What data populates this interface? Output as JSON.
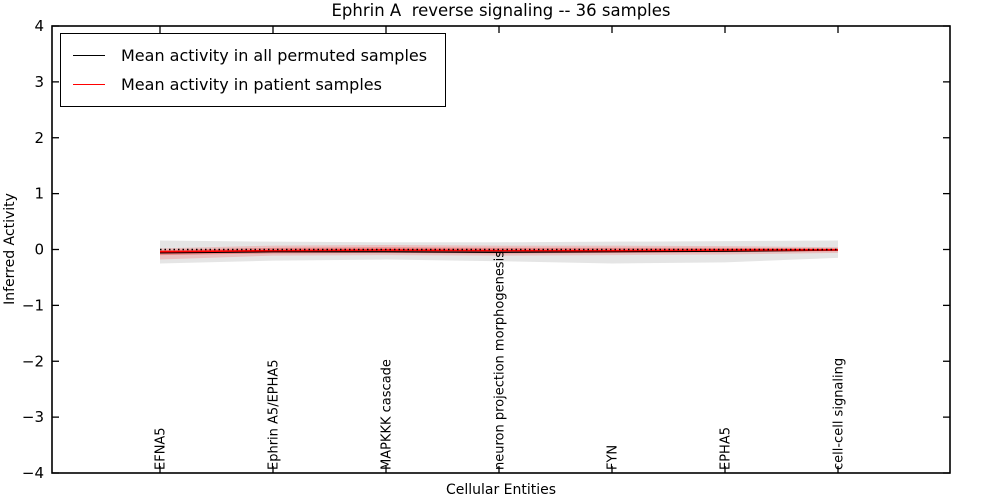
{
  "title": "Ephrin A  reverse signaling -- 36 samples",
  "axes": {
    "xlabel": "Cellular Entities",
    "ylabel": "Inferred Activity"
  },
  "legend": {
    "items": [
      {
        "label": "Mean activity in all permuted samples",
        "color": "#000000"
      },
      {
        "label": "Mean activity in patient samples",
        "color": "#ff0000"
      }
    ]
  },
  "chart_data": {
    "type": "line",
    "title": "Ephrin A  reverse signaling -- 36 samples",
    "xlabel": "Cellular Entities",
    "ylabel": "Inferred Activity",
    "ylim": [
      -4,
      4
    ],
    "yticks": [
      4,
      3,
      2,
      1,
      0,
      -1,
      -2,
      -3,
      -4
    ],
    "ytick_labels": [
      "4",
      "3",
      "2",
      "1",
      "0",
      "−1",
      "−2",
      "−3",
      "−4"
    ],
    "grid": false,
    "legend_position": "upper left",
    "categories": [
      "EFNA5",
      "Ephrin A5/EPHA5",
      "MAPKKK cascade",
      "neuron projection morphogenesis",
      "FYN",
      "EPHA5",
      "cell-cell signaling"
    ],
    "series": [
      {
        "name": "Mean activity in all permuted samples",
        "color": "#000000",
        "style": "solid",
        "values": [
          -0.06,
          -0.04,
          -0.04,
          -0.05,
          -0.04,
          -0.03,
          -0.01
        ]
      },
      {
        "name": "Mean activity in patient samples",
        "color": "#ff0000",
        "style": "solid",
        "values": [
          -0.04,
          -0.02,
          -0.01,
          -0.02,
          -0.02,
          -0.01,
          -0.005
        ]
      },
      {
        "name": "zero reference",
        "color": "#000000",
        "style": "dotted",
        "values": [
          0,
          0,
          0,
          0,
          0,
          0,
          0
        ]
      }
    ],
    "bands": [
      {
        "name": "permuted samples range",
        "color": "rgba(0,0,0,0.10)",
        "upper": [
          0.16,
          0.14,
          0.13,
          0.13,
          0.14,
          0.15,
          0.16
        ],
        "lower": [
          -0.25,
          -0.2,
          -0.18,
          -0.21,
          -0.25,
          -0.23,
          -0.15
        ]
      },
      {
        "name": "patient samples range outer",
        "color": "rgba(255,0,0,0.16)",
        "upper": [
          0.02,
          0.07,
          0.08,
          0.07,
          0.07,
          0.06,
          0.04
        ],
        "lower": [
          -0.18,
          -0.11,
          -0.1,
          -0.11,
          -0.1,
          -0.09,
          -0.06
        ]
      },
      {
        "name": "patient samples range inner",
        "color": "rgba(255,0,0,0.30)",
        "upper": [
          -0.01,
          0.03,
          0.04,
          0.03,
          0.03,
          0.03,
          0.02
        ],
        "lower": [
          -0.1,
          -0.07,
          -0.06,
          -0.07,
          -0.06,
          -0.05,
          -0.03
        ]
      }
    ]
  }
}
